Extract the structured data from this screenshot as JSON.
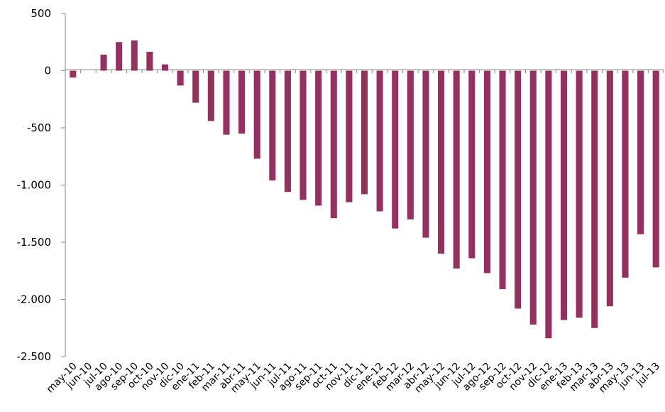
{
  "chart_data": {
    "type": "bar",
    "title": "",
    "xlabel": "",
    "ylabel": "",
    "ylim": [
      -2500,
      500
    ],
    "yticks": [
      500,
      0,
      -500,
      -1000,
      -1500,
      -2000,
      -2500
    ],
    "ytick_labels": [
      "500",
      "0",
      "-500",
      "-1.000",
      "-1.500",
      "-2.000",
      "-2.500"
    ],
    "bar_color": "#96305f",
    "grid": false,
    "categories": [
      "may-10",
      "jun-10",
      "jul-10",
      "ago-10",
      "sep-10",
      "oct-10",
      "nov-10",
      "dic-10",
      "ene-11",
      "feb-11",
      "mar-11",
      "abr-11",
      "may-11",
      "jun-11",
      "jul-11",
      "ago-11",
      "sep-11",
      "oct-11",
      "nov-11",
      "dic-11",
      "ene-12",
      "feb-12",
      "mar-12",
      "abr-12",
      "may-12",
      "jun-12",
      "jul-12",
      "ago-12",
      "sep-12",
      "oct-12",
      "nov-12",
      "dic-12",
      "ene-13",
      "feb-13",
      "mar-13",
      "abr-13",
      "may-13",
      "jun-13",
      "jul-13"
    ],
    "values": [
      -60,
      0,
      140,
      250,
      265,
      165,
      55,
      -130,
      -280,
      -440,
      -560,
      -550,
      -770,
      -960,
      -1060,
      -1130,
      -1180,
      -1290,
      -1150,
      -1080,
      -1230,
      -1380,
      -1300,
      -1460,
      -1600,
      -1730,
      -1640,
      -1770,
      -1910,
      -2080,
      -2220,
      -2340,
      -2180,
      -2160,
      -2250,
      -2060,
      -1810,
      -1430,
      -1720
    ]
  }
}
